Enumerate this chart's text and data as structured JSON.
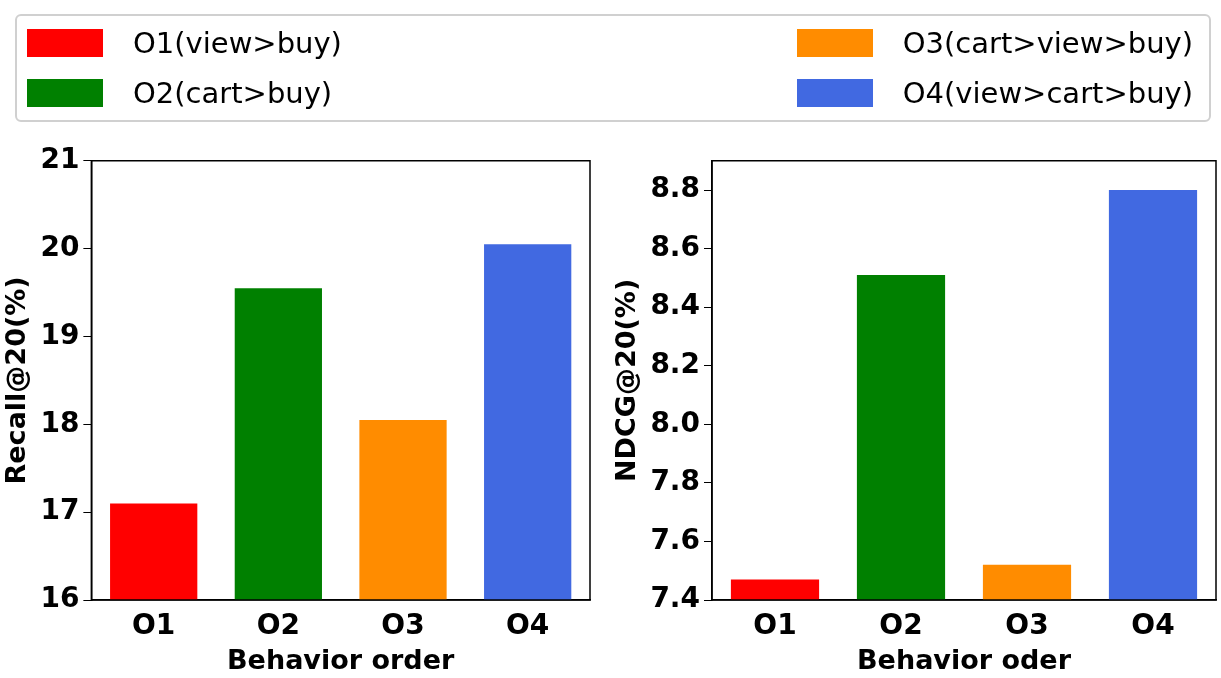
{
  "chart_data": [
    {
      "type": "bar",
      "xlabel": "Behavior order",
      "ylabel": "Recall@20(%)",
      "categories": [
        "O1",
        "O2",
        "O3",
        "O4"
      ],
      "ylim": [
        16,
        21
      ],
      "yticks": [
        16,
        17,
        18,
        19,
        20,
        21
      ],
      "legend": "top",
      "series": [
        {
          "name": "O1(view>buy)",
          "color": "#ff0000",
          "values": [
            17.1,
            null,
            null,
            null
          ]
        },
        {
          "name": "O2(cart>buy)",
          "color": "#008000",
          "values": [
            null,
            19.55,
            null,
            null
          ]
        },
        {
          "name": "O3(cart>view>buy)",
          "color": "#ff8c00",
          "values": [
            null,
            null,
            18.05,
            null
          ]
        },
        {
          "name": "O4(view>cart>buy)",
          "color": "#4169e1",
          "values": [
            null,
            null,
            null,
            20.05
          ]
        }
      ]
    },
    {
      "type": "bar",
      "xlabel": "Behavior oder",
      "ylabel": "NDCG@20(%)",
      "categories": [
        "O1",
        "O2",
        "O3",
        "O4"
      ],
      "ylim": [
        7.4,
        8.9
      ],
      "yticks": [
        {
          "value": 7.4,
          "label": "7.4"
        },
        {
          "value": 7.6,
          "label": "7.6"
        },
        {
          "value": 7.8,
          "label": "7.8"
        },
        {
          "value": 8.0,
          "label": "8.0"
        },
        {
          "value": 8.2,
          "label": "8.2"
        },
        {
          "value": 8.4,
          "label": "8.4"
        },
        {
          "value": 8.6,
          "label": "8.6"
        },
        {
          "value": 8.8,
          "label": "8.8"
        }
      ],
      "series": [
        {
          "color": "#ff0000",
          "values": [
            7.47,
            null,
            null,
            null
          ]
        },
        {
          "color": "#008000",
          "values": [
            null,
            8.51,
            null,
            null
          ]
        },
        {
          "color": "#ff8c00",
          "values": [
            null,
            null,
            7.52,
            null
          ]
        },
        {
          "color": "#4169e1",
          "values": [
            null,
            null,
            null,
            8.8
          ]
        }
      ]
    }
  ]
}
